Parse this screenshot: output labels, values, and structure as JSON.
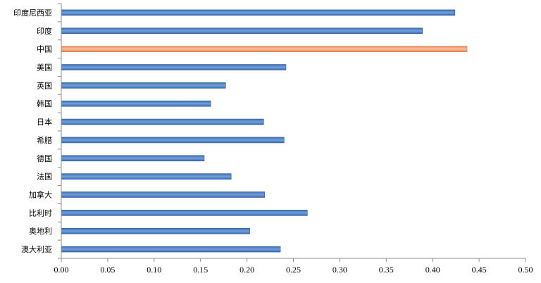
{
  "chart_data": {
    "type": "bar",
    "orientation": "horizontal",
    "categories": [
      "印度尼西亚",
      "印度",
      "中国",
      "美国",
      "英国",
      "韩国",
      "日本",
      "希腊",
      "德国",
      "法国",
      "加拿大",
      "比利时",
      "奥地利",
      "澳大利亚"
    ],
    "values": [
      0.424,
      0.389,
      0.437,
      0.242,
      0.177,
      0.161,
      0.218,
      0.24,
      0.154,
      0.183,
      0.219,
      0.265,
      0.203,
      0.236
    ],
    "highlight_category": "中国",
    "xlim": [
      0,
      0.5
    ],
    "x_ticks": [
      "0.00",
      "0.05",
      "0.10",
      "0.15",
      "0.20",
      "0.25",
      "0.30",
      "0.35",
      "0.40",
      "0.45",
      "0.50"
    ],
    "grid": false,
    "legend": false,
    "colors": {
      "bar": "#4a7fc4",
      "bar_edge": "#2d5d9f",
      "highlight": "#f2a27a",
      "highlight_edge": "#d9783f",
      "axis": "#8c8c8c"
    }
  }
}
